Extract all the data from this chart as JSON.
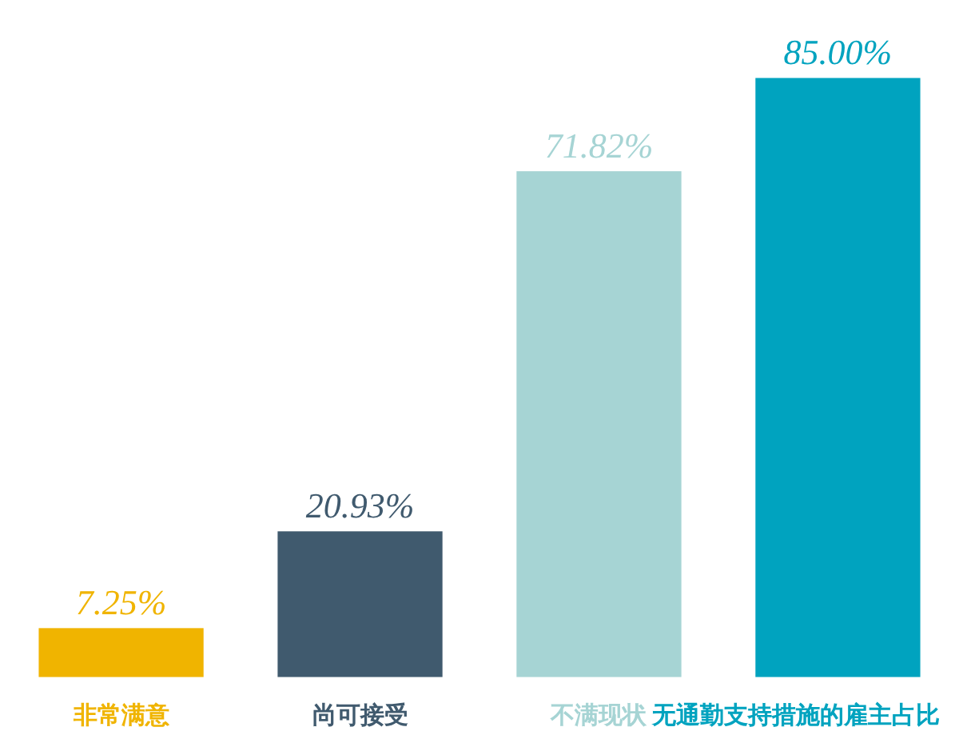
{
  "chart_data": {
    "type": "bar",
    "categories": [
      "非常满意",
      "尚可接受",
      "不满现状",
      "无通勤支持措施的雇主占比"
    ],
    "values": [
      7.25,
      20.93,
      71.82,
      85.0
    ],
    "value_labels": [
      "7.25%",
      "20.93%",
      "71.82%",
      "85.00%"
    ],
    "colors": [
      "#f0b400",
      "#405a6e",
      "#a6d4d4",
      "#00a3bf"
    ]
  }
}
